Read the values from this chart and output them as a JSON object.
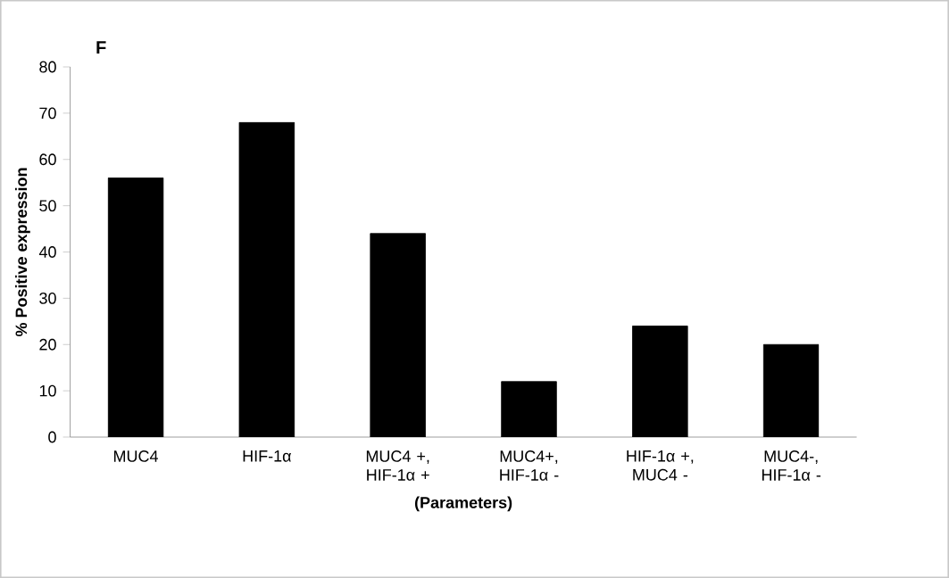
{
  "chart_data": {
    "type": "bar",
    "title": "F",
    "xlabel": "(Parameters)",
    "ylabel": "% Positive expression",
    "categories": [
      "MUC4",
      "HIF-1α",
      "MUC4 +, HIF-1α +",
      "MUC4+, HIF-1α -",
      "HIF-1α +, MUC4 -",
      "MUC4-, HIF-1α -"
    ],
    "values": [
      56,
      68,
      44,
      12,
      24,
      20
    ],
    "color": "#000000",
    "ylim": [
      0,
      80
    ],
    "yticks": [
      0,
      10,
      20,
      30,
      40,
      50,
      60,
      70,
      80
    ],
    "grid": false
  }
}
